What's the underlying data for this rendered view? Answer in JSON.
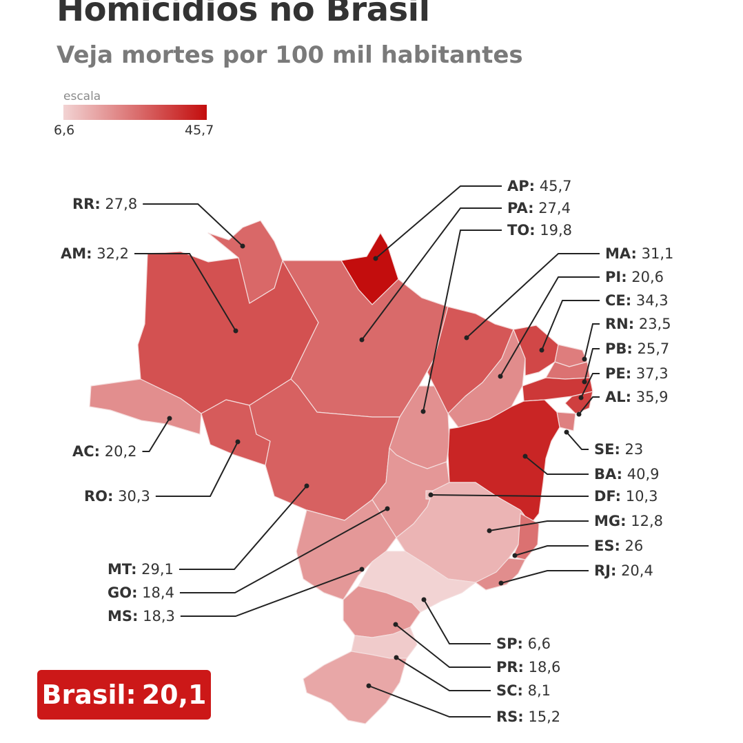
{
  "title": "Homicídios no Brasil",
  "subtitle": "Veja mortes por 100 mil habitantes",
  "scale": {
    "label": "escala",
    "min": "6,6",
    "max": "45,7",
    "color_min": "#f2d3d3",
    "color_max": "#c30d0d"
  },
  "brasil": {
    "label": "Brasil:",
    "value": "20,1",
    "color": "#cc1818"
  },
  "states": [
    {
      "code": "RR",
      "value": "27,8",
      "rate": 27.8
    },
    {
      "code": "AM",
      "value": "32,2",
      "rate": 32.2
    },
    {
      "code": "AC",
      "value": "20,2",
      "rate": 20.2
    },
    {
      "code": "RO",
      "value": "30,3",
      "rate": 30.3
    },
    {
      "code": "MT",
      "value": "29,1",
      "rate": 29.1
    },
    {
      "code": "GO",
      "value": "18,4",
      "rate": 18.4
    },
    {
      "code": "MS",
      "value": "18,3",
      "rate": 18.3
    },
    {
      "code": "AP",
      "value": "45,7",
      "rate": 45.7
    },
    {
      "code": "PA",
      "value": "27,4",
      "rate": 27.4
    },
    {
      "code": "TO",
      "value": "19,8",
      "rate": 19.8
    },
    {
      "code": "MA",
      "value": "31,1",
      "rate": 31.1
    },
    {
      "code": "PI",
      "value": "20,6",
      "rate": 20.6
    },
    {
      "code": "CE",
      "value": "34,3",
      "rate": 34.3
    },
    {
      "code": "RN",
      "value": "23,5",
      "rate": 23.5
    },
    {
      "code": "PB",
      "value": "25,7",
      "rate": 25.7
    },
    {
      "code": "PE",
      "value": "37,3",
      "rate": 37.3
    },
    {
      "code": "AL",
      "value": "35,9",
      "rate": 35.9
    },
    {
      "code": "SE",
      "value": "23",
      "rate": 23.0
    },
    {
      "code": "BA",
      "value": "40,9",
      "rate": 40.9
    },
    {
      "code": "DF",
      "value": "10,3",
      "rate": 10.3
    },
    {
      "code": "MG",
      "value": "12,8",
      "rate": 12.8
    },
    {
      "code": "ES",
      "value": "26",
      "rate": 26.0
    },
    {
      "code": "RJ",
      "value": "20,4",
      "rate": 20.4
    },
    {
      "code": "SP",
      "value": "6,6",
      "rate": 6.6
    },
    {
      "code": "PR",
      "value": "18,6",
      "rate": 18.6
    },
    {
      "code": "SC",
      "value": "8,1",
      "rate": 8.1
    },
    {
      "code": "RS",
      "value": "15,2",
      "rate": 15.2
    }
  ]
}
